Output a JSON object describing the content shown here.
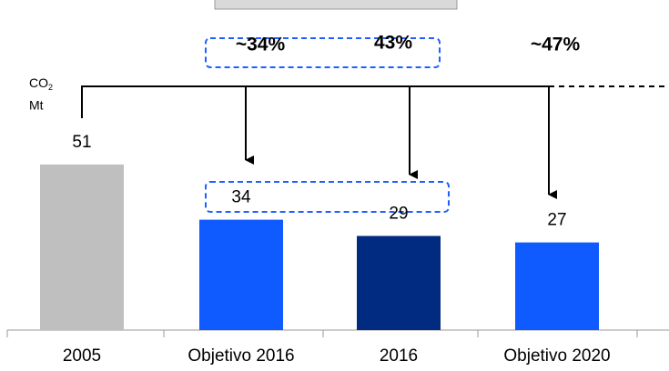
{
  "chart_data": {
    "type": "bar",
    "categories": [
      "2005",
      "Objetivo 2016",
      "2016",
      "Objetivo 2020"
    ],
    "values": [
      51,
      34,
      29,
      27
    ],
    "colors": [
      "#bfbfbf",
      "#0f5bff",
      "#002b80",
      "#0f5bff"
    ],
    "axis_label": {
      "text": "CO",
      "sub": "2",
      "unit": "Mt"
    },
    "reductions": [
      "~34%",
      "43%",
      "~47%"
    ]
  }
}
